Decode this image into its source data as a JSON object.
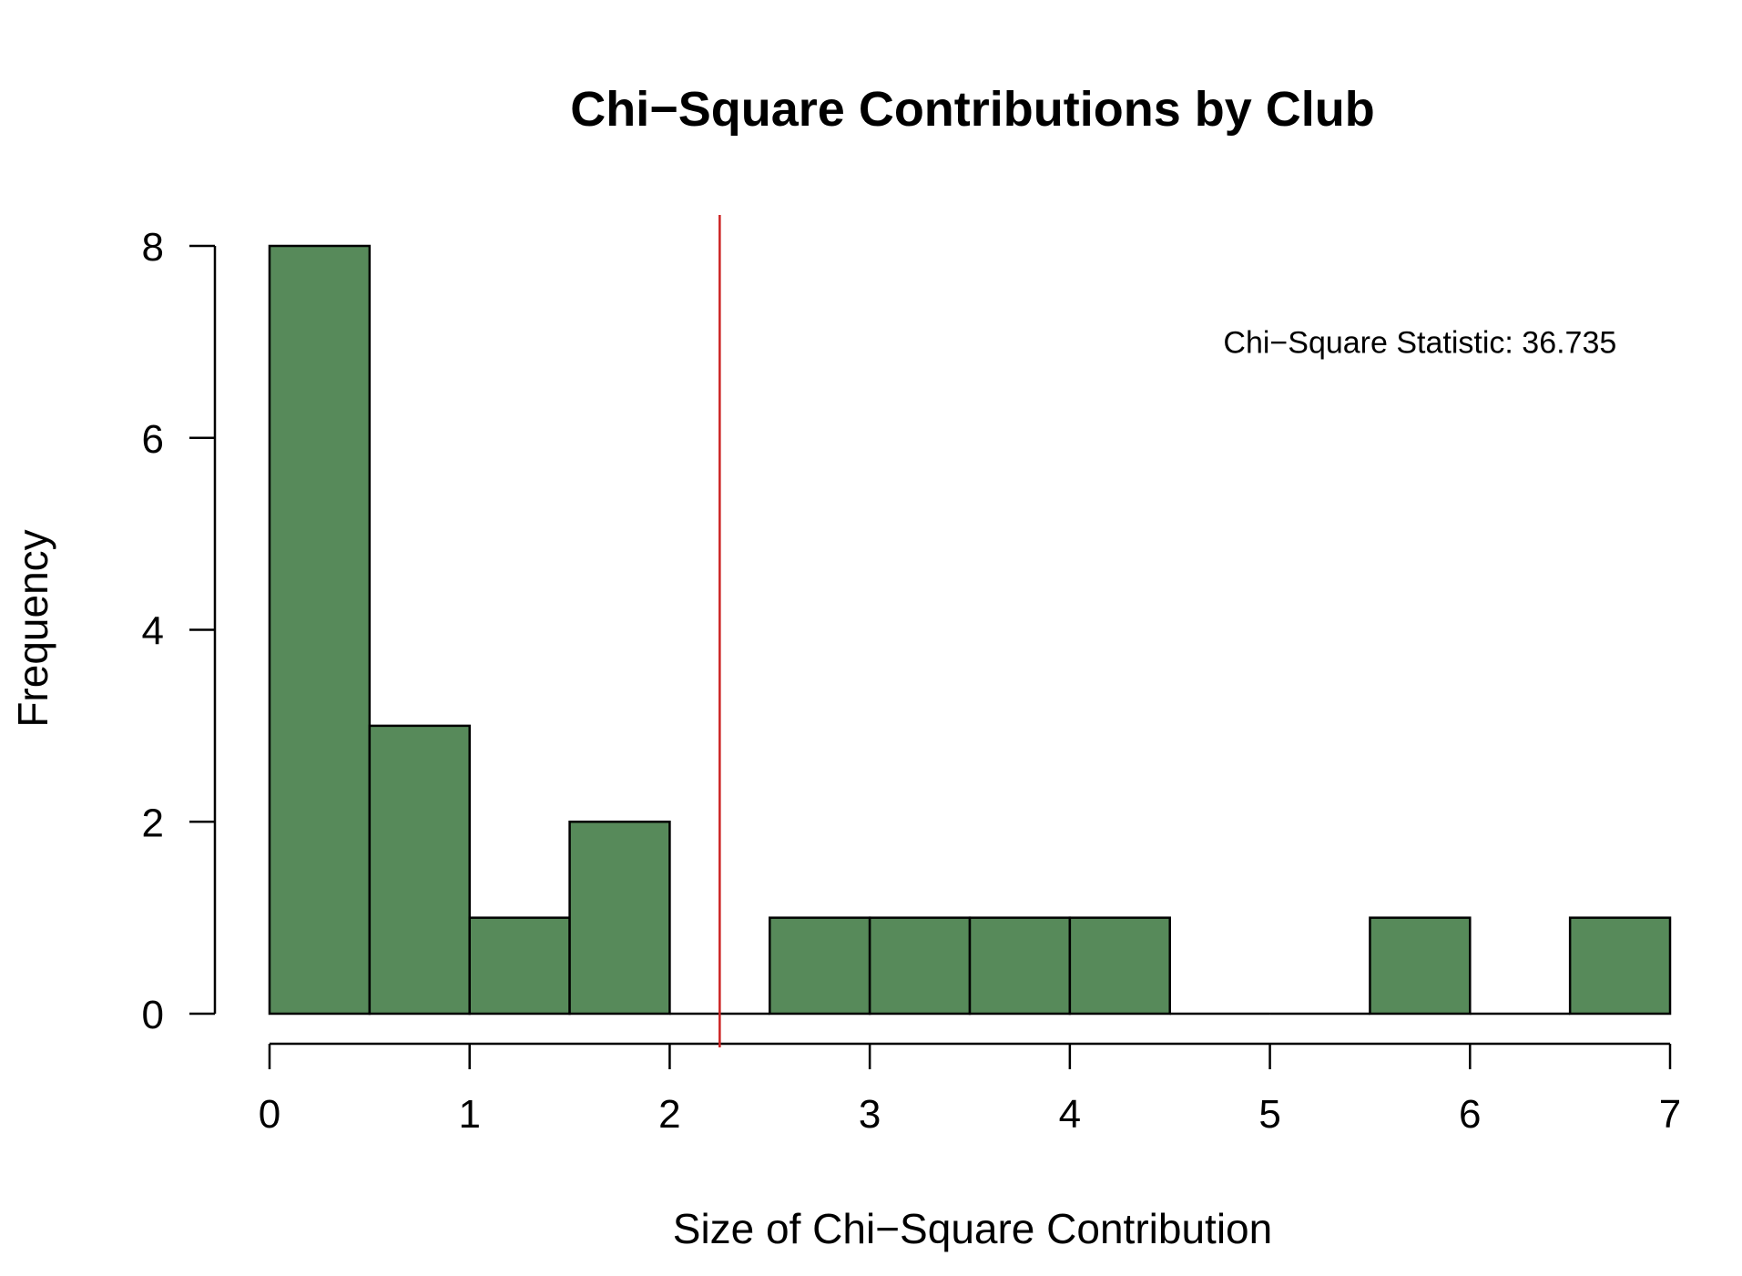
{
  "chart_data": {
    "type": "bar",
    "title": "Chi−Square Contributions by Club",
    "xlabel": "Size of Chi−Square Contribution",
    "ylabel": "Frequency",
    "bin_edges": [
      0,
      0.5,
      1,
      1.5,
      2,
      2.5,
      3,
      3.5,
      4,
      4.5,
      5,
      5.5,
      6,
      6.5,
      7
    ],
    "values": [
      8,
      3,
      1,
      2,
      0,
      1,
      1,
      1,
      1,
      0,
      0,
      1,
      0,
      1
    ],
    "xlim": [
      0,
      7
    ],
    "ylim": [
      0,
      8
    ],
    "x_ticks": [
      0,
      1,
      2,
      3,
      4,
      5,
      6,
      7
    ],
    "y_ticks": [
      0,
      2,
      4,
      6,
      8
    ],
    "bar_color": "#578a5a",
    "reference_line": {
      "x": 2.25,
      "color": "#cc2222"
    },
    "annotation": {
      "text": "Chi−Square Statistic: 36.735",
      "x": 5.75,
      "y": 7
    },
    "grid": false,
    "legend": "none"
  }
}
